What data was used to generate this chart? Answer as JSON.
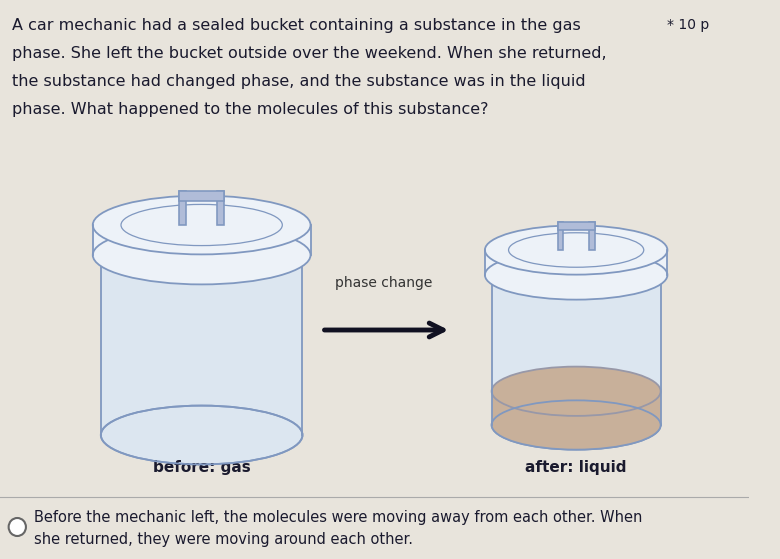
{
  "bg_color": "#e8e4dc",
  "title_text": "A car mechanic had a sealed bucket containing a substance in the gas",
  "title_line2": "phase. She left the bucket outside over the weekend. When she returned,",
  "title_line3": "the substance had changed phase, and the substance was in the liquid",
  "title_line4": "phase. What happened to the molecules of this substance?",
  "points_text": "* 10 p",
  "phase_change_label": "phase change",
  "before_label": "before: gas",
  "after_label": "after: liquid",
  "answer_text": "Before the mechanic left, the molecules were moving away from each other. When\nshe returned, they were moving around each other.",
  "bucket_color_body": "#dce6f0",
  "bucket_color_lid": "#edf2f8",
  "bucket_color_outline": "#8098c0",
  "bucket_color_inner": "#f0f4f8",
  "liquid_color": "#c8b09a",
  "liquid_outline": "#9898a8",
  "handle_fill": "#b0bcd8",
  "handle_outline": "#8098c0",
  "arrow_color": "#111122",
  "text_color": "#1a1a2e",
  "answer_color": "#1a1a2e",
  "divider_color": "#aaaaaa"
}
